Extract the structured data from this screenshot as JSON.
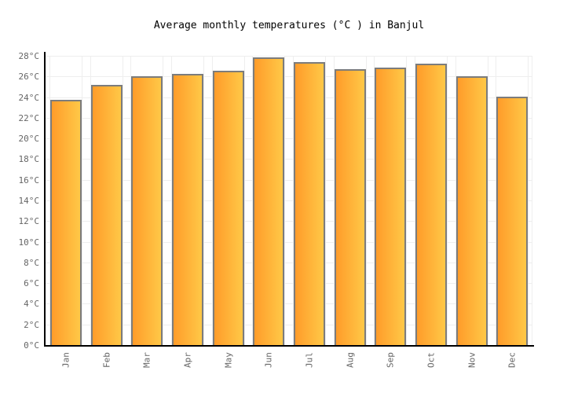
{
  "title": "Average monthly temperatures (°C ) in Banjul",
  "colors": {
    "background": "#FFFFFF",
    "bar_gradient_left": "#FF9C2A",
    "bar_gradient_right": "#FFC847",
    "bar_border": "#7C7C7C",
    "grid": "#EEEEEE",
    "axis": "#000000",
    "tick_label": "#666666",
    "title_text": "#000000"
  },
  "chart_data": {
    "type": "bar",
    "title": "Average monthly temperatures (°C ) in Banjul",
    "categories": [
      "Jan",
      "Feb",
      "Mar",
      "Apr",
      "May",
      "Jun",
      "Jul",
      "Aug",
      "Sep",
      "Oct",
      "Nov",
      "Dec"
    ],
    "values": [
      23.8,
      25.3,
      26.1,
      26.3,
      26.6,
      27.9,
      27.5,
      26.8,
      26.9,
      27.3,
      26.1,
      24.1
    ],
    "unit": "°C",
    "xlabel": "",
    "ylabel": "",
    "ylim": [
      0,
      28
    ],
    "ytick_step": 2,
    "ytick_suffix": "°C",
    "grid": true,
    "legend": false,
    "x_labels_rotated_degrees": -90
  }
}
